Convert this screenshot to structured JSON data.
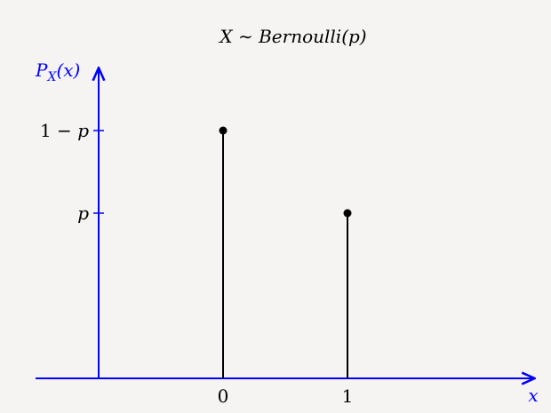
{
  "chart_data": {
    "type": "stem",
    "title": "X ∼ Bernoulli(p)",
    "title_parts": {
      "var": "X",
      "op": " ∼ ",
      "name": "Bernoulli",
      "arg": "(p)"
    },
    "ylabel": {
      "main": "P",
      "sub": "X",
      "arg": "(x)"
    },
    "xlabel": "x",
    "x_ticks": [
      "0",
      "1"
    ],
    "y_ticks": [
      "1 − p",
      "p"
    ],
    "y_tick_parts": [
      {
        "num": "1",
        "op": " − ",
        "var": "p"
      },
      {
        "num": "",
        "op": "",
        "var": "p"
      }
    ],
    "points": [
      {
        "x": 0,
        "label": "1 − p",
        "relative_height": 0.6
      },
      {
        "x": 1,
        "label": "p",
        "relative_height": 0.4
      }
    ],
    "legend": "none",
    "grid": false,
    "colors": {
      "axes": "#0000ff",
      "stems": "#000000",
      "text": "#000000"
    }
  }
}
